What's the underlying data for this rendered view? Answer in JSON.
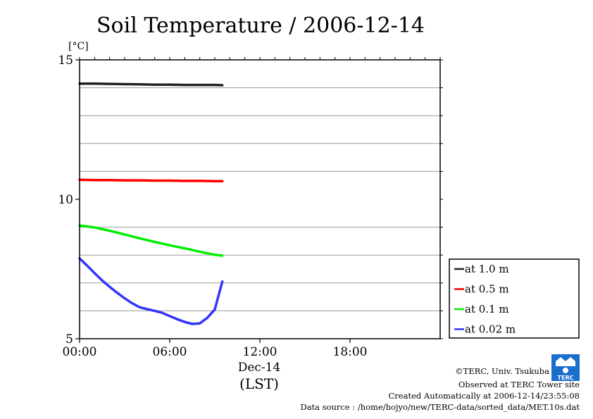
{
  "chart_data": {
    "type": "line",
    "title": "Soil Temperature / 2006-12-14",
    "ylabel_unit": "[°C]",
    "ylim": [
      5,
      15
    ],
    "y_ticks": [
      5,
      10,
      15
    ],
    "y_gridlines": [
      6,
      7,
      8,
      9,
      11,
      12,
      13,
      14
    ],
    "xlim_hours": [
      0,
      24
    ],
    "x_ticks": [
      {
        "hour": 0,
        "label": "00:00"
      },
      {
        "hour": 6,
        "label": "06:00"
      },
      {
        "hour": 12,
        "label": "12:00"
      },
      {
        "hour": 18,
        "label": "18:00"
      }
    ],
    "x_sublabel": "Dec-14",
    "xlabel": "(LST)",
    "grid": true,
    "legend_position": "right",
    "series": [
      {
        "name": "at 1.0 m",
        "color": "#222222",
        "x": [
          0,
          1,
          2,
          3,
          4,
          5,
          6,
          7,
          8,
          9,
          9.5
        ],
        "y": [
          14.15,
          14.15,
          14.14,
          14.13,
          14.12,
          14.11,
          14.11,
          14.1,
          14.1,
          14.1,
          14.09
        ]
      },
      {
        "name": "at 0.5 m",
        "color": "#ff0000",
        "x": [
          0,
          1,
          2,
          3,
          4,
          5,
          6,
          7,
          8,
          9,
          9.5
        ],
        "y": [
          10.7,
          10.69,
          10.69,
          10.68,
          10.68,
          10.67,
          10.67,
          10.66,
          10.66,
          10.65,
          10.65
        ]
      },
      {
        "name": "at 0.1 m",
        "color": "#00ee00",
        "x": [
          0,
          1,
          2,
          3,
          4,
          5,
          6,
          7,
          8,
          9,
          9.5
        ],
        "y": [
          9.06,
          8.99,
          8.87,
          8.74,
          8.6,
          8.47,
          8.35,
          8.24,
          8.12,
          8.01,
          7.98
        ]
      },
      {
        "name": "at 0.02 m",
        "color": "#3333ff",
        "x": [
          0,
          0.5,
          1,
          1.5,
          2,
          2.5,
          3,
          3.5,
          4,
          4.5,
          5,
          5.5,
          6,
          6.5,
          7,
          7.5,
          8,
          8.5,
          9,
          9.5
        ],
        "y": [
          7.88,
          7.62,
          7.35,
          7.09,
          6.86,
          6.65,
          6.45,
          6.27,
          6.13,
          6.06,
          6.0,
          5.93,
          5.81,
          5.7,
          5.6,
          5.53,
          5.55,
          5.75,
          6.05,
          7.05
        ]
      }
    ]
  },
  "footer": {
    "credit": "©TERC, Univ. Tsukuba",
    "site": "Observed at TERC Tower site",
    "created": "Created Automatically at 2006-12-14/23:55:08",
    "source": "Data source : /home/hojyo/new/TERC-data/sorted_data/MET.10s.dat"
  },
  "logo": {
    "text": "TERC",
    "color": "#1a6fcc"
  }
}
